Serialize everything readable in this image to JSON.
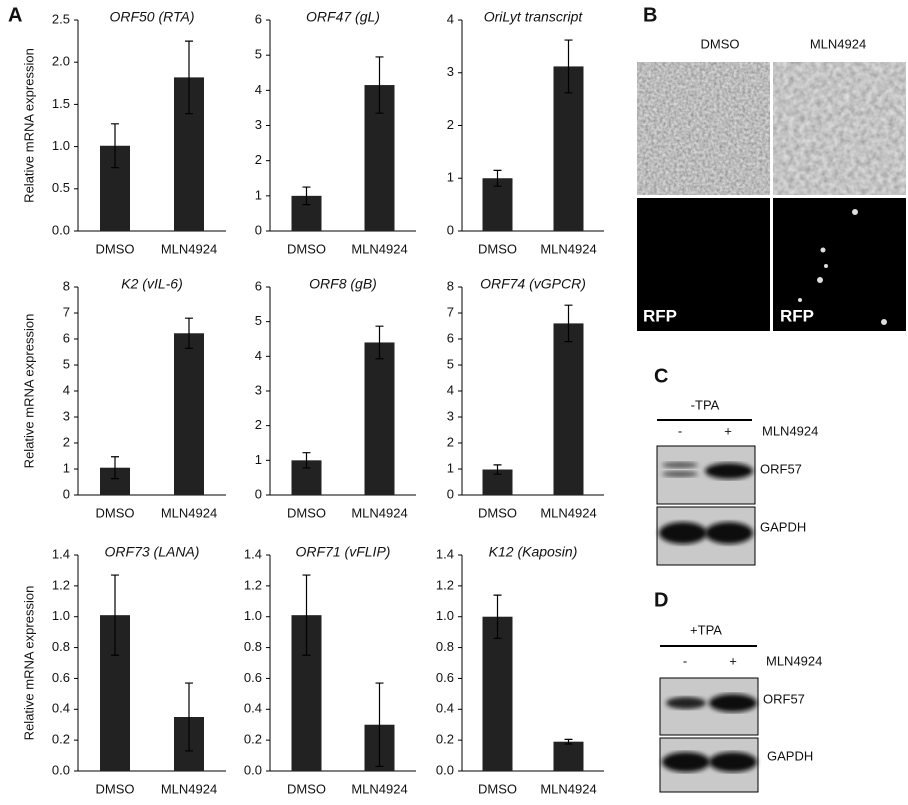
{
  "panel_a_label": "A",
  "chart_data": [
    {
      "type": "bar",
      "title": "ORF50 (RTA)",
      "ylabel": "Relative mRNA expression",
      "categories": [
        "DMSO",
        "MLN4924"
      ],
      "values": [
        1.01,
        1.82
      ],
      "errors": [
        0.26,
        0.43
      ],
      "color": "#222222",
      "ylim": [
        0,
        2.5
      ],
      "yticks": [
        {
          "value": 0,
          "label": "0.0"
        },
        0.5,
        {
          "value": 1,
          "label": "1.0"
        },
        1.5,
        {
          "value": 2,
          "label": "2.0"
        },
        2.5
      ]
    },
    {
      "type": "bar",
      "title": "ORF47 (gL)",
      "categories": [
        "DMSO",
        "MLN4924"
      ],
      "values": [
        1.0,
        4.15
      ],
      "errors": [
        0.25,
        0.8
      ],
      "color": "#222222",
      "ylim": [
        0,
        6
      ],
      "yticks": [
        0,
        1,
        2,
        3,
        4,
        5,
        6
      ]
    },
    {
      "type": "bar",
      "title": "OriLyt transcript",
      "categories": [
        "DMSO",
        "MLN4924"
      ],
      "values": [
        1.0,
        3.12
      ],
      "errors": [
        0.15,
        0.5
      ],
      "color": "#222222",
      "ylim": [
        0,
        4
      ],
      "yticks": [
        0,
        1,
        2,
        3,
        4
      ]
    },
    {
      "type": "bar",
      "title": "K2 (vIL-6)",
      "ylabel": "Relative mRNA expression",
      "categories": [
        "DMSO",
        "MLN4924"
      ],
      "values": [
        1.05,
        6.22
      ],
      "errors": [
        0.42,
        0.58
      ],
      "color": "#222222",
      "ylim": [
        0,
        8
      ],
      "yticks": [
        0,
        1,
        2,
        3,
        4,
        5,
        6,
        7,
        8
      ]
    },
    {
      "type": "bar",
      "title": "ORF8 (gB)",
      "categories": [
        "DMSO",
        "MLN4924"
      ],
      "values": [
        1.0,
        4.4
      ],
      "errors": [
        0.22,
        0.47
      ],
      "color": "#222222",
      "ylim": [
        0,
        6
      ],
      "yticks": [
        0,
        1,
        2,
        3,
        4,
        5,
        6
      ]
    },
    {
      "type": "bar",
      "title": "ORF74 (vGPCR)",
      "categories": [
        "DMSO",
        "MLN4924"
      ],
      "values": [
        0.98,
        6.6
      ],
      "errors": [
        0.18,
        0.7
      ],
      "color": "#222222",
      "ylim": [
        0,
        8
      ],
      "yticks": [
        0,
        1,
        2,
        3,
        4,
        5,
        6,
        7,
        8
      ]
    },
    {
      "type": "bar",
      "title": "ORF73 (LANA)",
      "ylabel": "Relative mRNA expression",
      "categories": [
        "DMSO",
        "MLN4924"
      ],
      "values": [
        1.01,
        0.35
      ],
      "errors": [
        0.26,
        0.22
      ],
      "color": "#222222",
      "ylim": [
        0,
        1.4
      ],
      "yticks": [
        {
          "value": 0,
          "label": "0.0"
        },
        0.2,
        0.4,
        0.6,
        0.8,
        {
          "value": 1,
          "label": "1.0"
        },
        1.2,
        1.4
      ]
    },
    {
      "type": "bar",
      "title": "ORF71 (vFLIP)",
      "categories": [
        "DMSO",
        "MLN4924"
      ],
      "values": [
        1.01,
        0.3
      ],
      "errors": [
        0.26,
        0.27
      ],
      "color": "#222222",
      "ylim": [
        0,
        1.4
      ],
      "yticks": [
        {
          "value": 0,
          "label": "0.0"
        },
        0.2,
        0.4,
        0.6,
        0.8,
        {
          "value": 1,
          "label": "1.0"
        },
        1.2,
        1.4
      ]
    },
    {
      "type": "bar",
      "title": "K12 (Kaposin)",
      "categories": [
        "DMSO",
        "MLN4924"
      ],
      "values": [
        1.0,
        0.19
      ],
      "errors": [
        0.14,
        0.015
      ],
      "color": "#222222",
      "ylim": [
        0,
        1.4
      ],
      "yticks": [
        {
          "value": 0,
          "label": "0.0"
        },
        0.2,
        0.4,
        0.6,
        0.8,
        {
          "value": 1,
          "label": "1.0"
        },
        1.2,
        1.4
      ]
    }
  ],
  "panel_b": {
    "label": "B",
    "columns": [
      "DMSO",
      "MLN4924"
    ],
    "channel_label": "RFP"
  },
  "panel_c": {
    "label": "C",
    "condition": "-TPA",
    "lanes": [
      "-",
      "+"
    ],
    "treatment": "MLN4924",
    "blots": [
      "ORF57",
      "GAPDH"
    ]
  },
  "panel_d": {
    "label": "D",
    "condition": "+TPA",
    "lanes": [
      "-",
      "+"
    ],
    "treatment": "MLN4924",
    "blots": [
      "ORF57",
      "GAPDH"
    ]
  }
}
